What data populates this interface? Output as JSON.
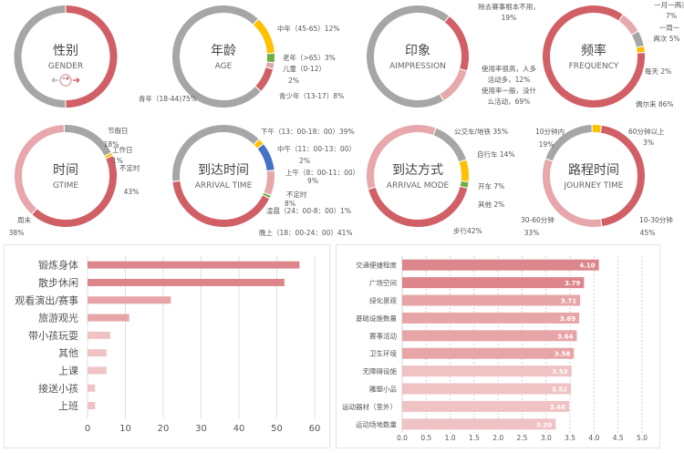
{
  "colors": {
    "red": "#d16066",
    "pink": "#e6a8aa",
    "gray": "#a6a6a6",
    "gold": "#ffc000",
    "green": "#70ad47",
    "blue": "#4472c4",
    "bar_dark": "#dc868b",
    "bar_mid": "#e7a5a8",
    "bar_light": "#efc2c4"
  },
  "chart_data": [
    {
      "type": "pie",
      "title": "性别",
      "subtitle": "GENDER",
      "icon": "gender-icon",
      "series": [
        {
          "value": 50,
          "color": "red"
        },
        {
          "value": 50,
          "color": "gray"
        }
      ]
    },
    {
      "type": "pie",
      "title": "年龄",
      "subtitle": "AGE",
      "series": [
        {
          "label": "中年（45-65）12%",
          "value": 12,
          "color": "gold"
        },
        {
          "label": "老年（>65）3%",
          "value": 3,
          "color": "green"
        },
        {
          "label": "儿童（0-12）",
          "label2": "2%",
          "value": 2,
          "color": "pink"
        },
        {
          "label": "青少年（13-17）8%",
          "value": 8,
          "color": "red"
        },
        {
          "label": "青年（18-44)75%",
          "value": 75,
          "color": "gray"
        }
      ]
    },
    {
      "type": "pie",
      "title": "印象",
      "subtitle": "AIMPRESSION",
      "series": [
        {
          "label": "除去赛事根本不用，",
          "label2": "19%",
          "value": 19,
          "color": "red"
        },
        {
          "label": "使用率很高，人多",
          "label2": "活动多，12%",
          "value": 12,
          "color": "pink"
        },
        {
          "label": "使用率一般，没什",
          "label2": "么活动，69%",
          "value": 69,
          "color": "gray"
        }
      ]
    },
    {
      "type": "pie",
      "title": "频率",
      "subtitle": "FREQUENCY",
      "series": [
        {
          "label": "一月一两次",
          "label2": "7%",
          "value": 7,
          "color": "pink"
        },
        {
          "label": "一周一",
          "label2": "两次 5%",
          "value": 5,
          "color": "gray"
        },
        {
          "label": "每天 2%",
          "value": 2,
          "color": "gold"
        },
        {
          "label": "偶尔来 86%",
          "value": 86,
          "color": "red"
        }
      ]
    },
    {
      "type": "pie",
      "title": "时间",
      "subtitle": "GTIME",
      "series": [
        {
          "label": "工作日",
          "label2": "1%",
          "value": 1,
          "color": "gold"
        },
        {
          "label": "不定时",
          "label2": "43%",
          "value": 43,
          "color": "red"
        },
        {
          "label": "周末",
          "label2": "38%",
          "value": 38,
          "color": "pink"
        },
        {
          "label": "节假日",
          "label2": "18%",
          "value": 18,
          "color": "gray"
        }
      ]
    },
    {
      "type": "pie",
      "title": "到达时间",
      "subtitle": "ARRIVAL TIME",
      "series": [
        {
          "label": "中午（11：00-13：00）",
          "label2": "2%",
          "value": 2,
          "color": "gold"
        },
        {
          "label": "上午（8：00-11：00）",
          "label2": "9%",
          "value": 9,
          "color": "blue"
        },
        {
          "label": "不定时",
          "label2": "8%",
          "value": 8,
          "color": "pink"
        },
        {
          "label": "凌晨（24：00-8：00）1%",
          "value": 1,
          "color": "green"
        },
        {
          "label": "晚上（18：00-24：00）41%",
          "value": 41,
          "color": "red"
        },
        {
          "label": "下午（13：00-18：00）39%",
          "value": 39,
          "color": "gray"
        }
      ]
    },
    {
      "type": "pie",
      "title": "到达方式",
      "subtitle": "ARRIVAL MODE",
      "series": [
        {
          "label": "自行车 14%",
          "value": 14,
          "color": "gray"
        },
        {
          "label": "开车 7%",
          "value": 7,
          "color": "gold"
        },
        {
          "label": "其他 2%",
          "value": 2,
          "color": "green"
        },
        {
          "label": "步行42%",
          "value": 42,
          "color": "red"
        },
        {
          "label": "公交车/地铁 35%",
          "value": 35,
          "color": "pink"
        }
      ]
    },
    {
      "type": "pie",
      "title": "路程时间",
      "subtitle": "JOURNEY TIME",
      "series": [
        {
          "label": "60分钟以上",
          "label2": "3%",
          "value": 3,
          "color": "gold"
        },
        {
          "label": "10-30分钟",
          "label2": "45%",
          "value": 45,
          "color": "red"
        },
        {
          "label": "30-60分钟",
          "label2": "33%",
          "value": 33,
          "color": "pink"
        },
        {
          "label": "10分钟内",
          "label2": "19%",
          "value": 19,
          "color": "gray"
        }
      ]
    },
    {
      "type": "bar",
      "orientation": "horizontal",
      "categories": [
        "锻炼身体",
        "散步休闲",
        "观看演出/赛事",
        "旅游观光",
        "带小孩玩耍",
        "其他",
        "上课",
        "接送小孩",
        "上班"
      ],
      "values": [
        56,
        52,
        22,
        11,
        6,
        5,
        5,
        2,
        2
      ],
      "xlim": [
        0,
        60
      ],
      "xticks": [
        "0",
        "10",
        "20",
        "30",
        "40",
        "50",
        "60"
      ],
      "grid": true
    },
    {
      "type": "bar",
      "orientation": "horizontal",
      "categories": [
        "交通便捷程度",
        "广场空间",
        "绿化景观",
        "基础设施数量",
        "赛事活动",
        "卫生环境",
        "无障碍设施",
        "雕塑小品",
        "运动器材（室外）",
        "运动场地数量"
      ],
      "values": [
        4.1,
        3.79,
        3.71,
        3.69,
        3.64,
        3.58,
        3.53,
        3.52,
        3.48,
        3.2
      ],
      "data_labels": [
        "4.10",
        "3.79",
        "3.71",
        "3.69",
        "3.64",
        "3.58",
        "3.53",
        "3.52",
        "3.48",
        "3.20"
      ],
      "xlim": [
        0,
        5
      ],
      "xticks": [
        "0.0",
        "0.5",
        "1.0",
        "1.5",
        "2.0",
        "2.5",
        "3.0",
        "3.5",
        "4.0",
        "4.5",
        "5.0"
      ],
      "grid": true
    }
  ]
}
